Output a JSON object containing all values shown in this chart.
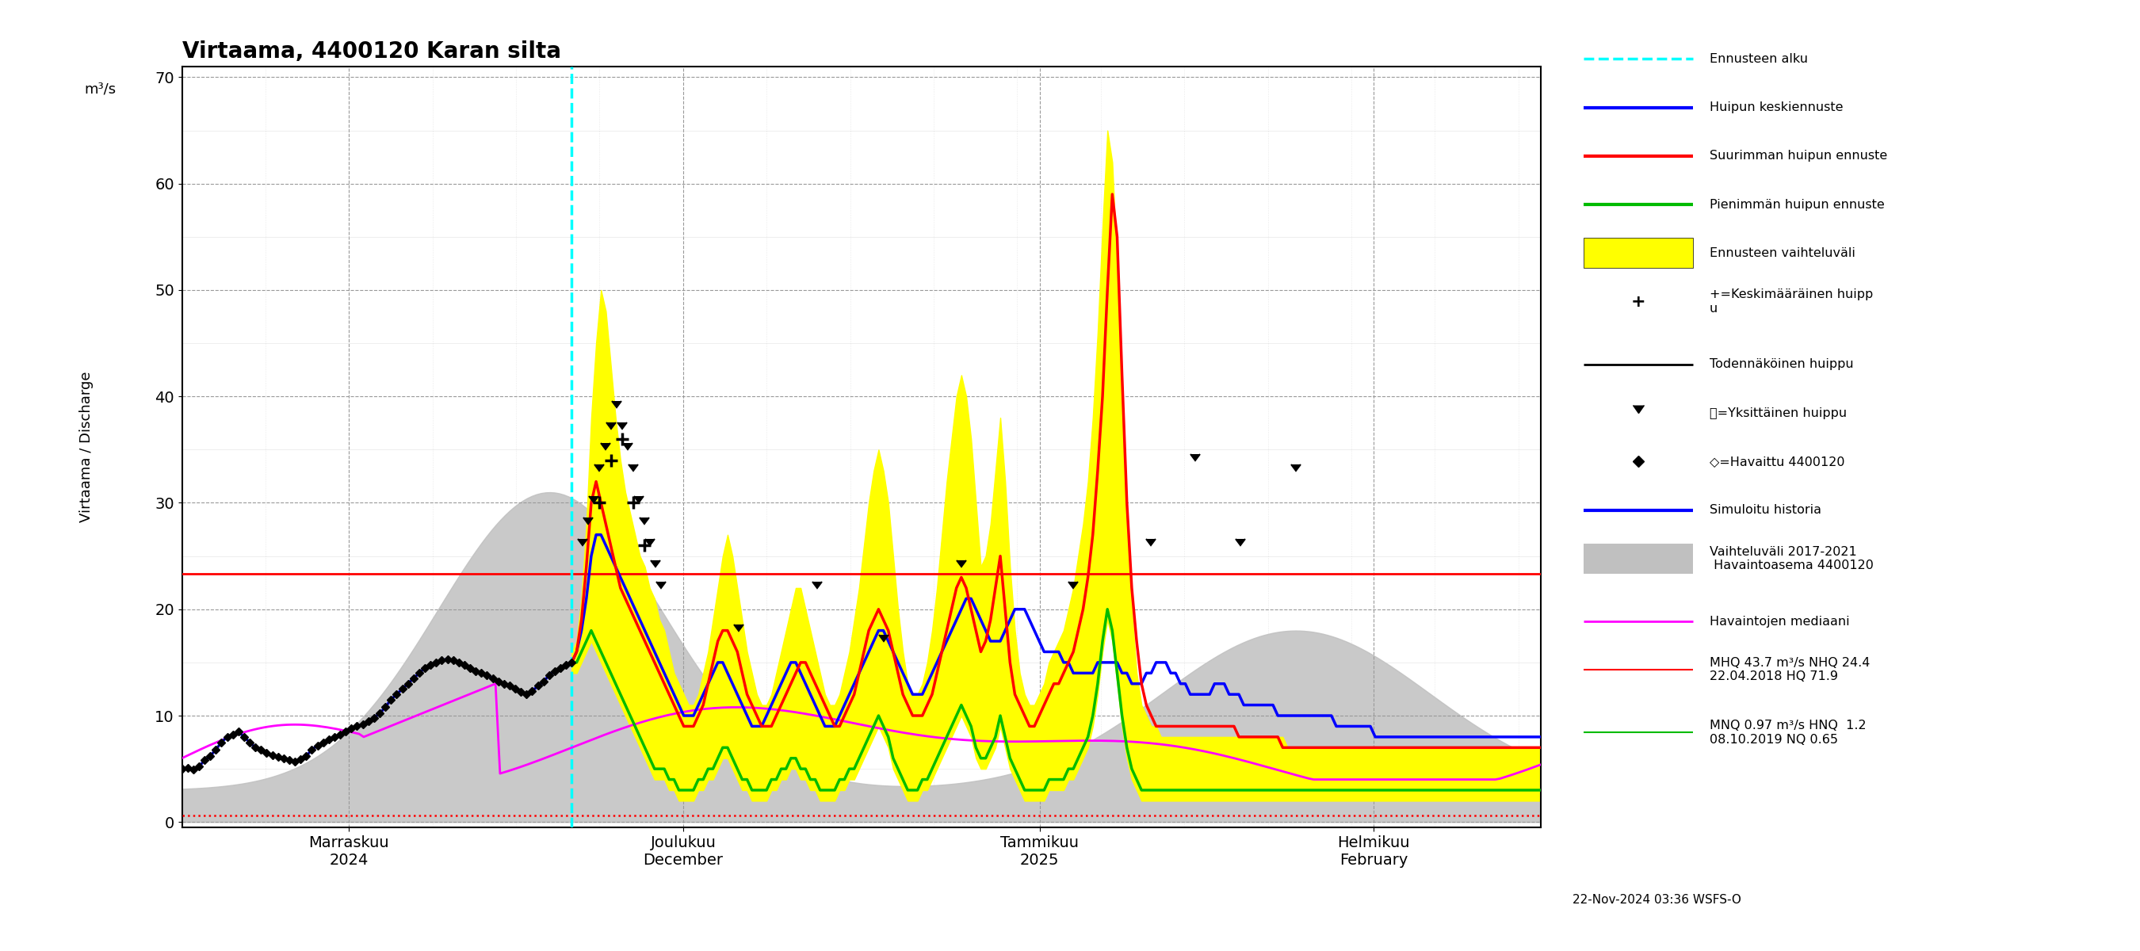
{
  "title": "Virtaama, 4400120 Karan silta",
  "ylabel_top": "m³/s",
  "ylabel_bottom": "Virtaama / Discharge",
  "ylim_min": -0.5,
  "ylim_max": 71,
  "yticks": [
    0,
    10,
    20,
    30,
    40,
    50,
    60,
    70
  ],
  "hline_red_solid": 23.3,
  "hline_red_dotted": 0.65,
  "forecast_start_day": 35,
  "cyan_vline_day": 35,
  "timestamp": "22-Nov-2024 03:36 WSFS-O",
  "xtick_days": [
    15,
    45,
    77,
    107
  ],
  "xtick_labels": [
    "Marraskuu\n2024",
    "Joulukuu\nDecember",
    "Tammikuu\n2025",
    "Helmikuu\nFebruary"
  ],
  "total_days": 122
}
